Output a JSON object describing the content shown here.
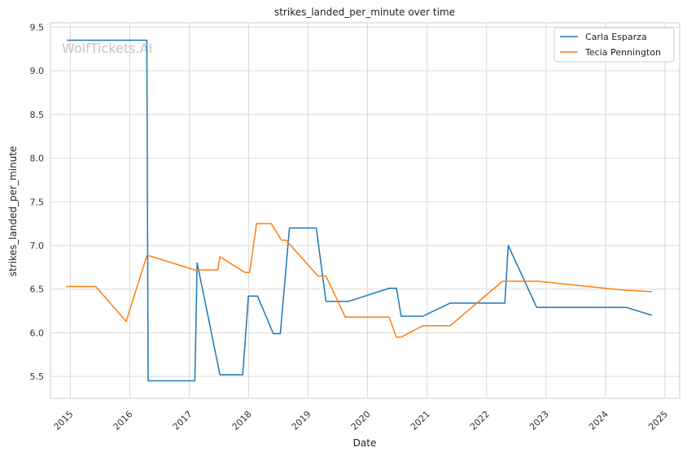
{
  "chart_data": {
    "type": "line",
    "title": "strikes_landed_per_minute over time",
    "xlabel": "Date",
    "ylabel": "strikes_landed_per_minute",
    "watermark": "WolfTickets.AI",
    "grid": true,
    "legend_position": "top-right",
    "xlim": [
      "2014-09-01",
      "2025-04-01"
    ],
    "ylim": [
      5.25,
      9.55
    ],
    "x_ticks": [
      "2015",
      "2016",
      "2017",
      "2018",
      "2019",
      "2020",
      "2021",
      "2022",
      "2023",
      "2024",
      "2025"
    ],
    "y_ticks": [
      "5.5",
      "6.0",
      "6.5",
      "7.0",
      "7.5",
      "8.0",
      "8.5",
      "9.0",
      "9.5"
    ],
    "series": [
      {
        "name": "Carla Esparza",
        "color": "#1f77b4",
        "points": [
          [
            "2014-12-12",
            9.35
          ],
          [
            "2016-04-15",
            9.35
          ],
          [
            "2016-04-23",
            5.45
          ],
          [
            "2017-02-04",
            5.45
          ],
          [
            "2017-02-18",
            6.8
          ],
          [
            "2017-07-08",
            5.52
          ],
          [
            "2017-11-25",
            5.52
          ],
          [
            "2017-12-30",
            6.42
          ],
          [
            "2018-02-24",
            6.42
          ],
          [
            "2018-06-01",
            5.99
          ],
          [
            "2018-07-14",
            5.99
          ],
          [
            "2018-09-08",
            7.2
          ],
          [
            "2019-02-20",
            7.2
          ],
          [
            "2019-04-20",
            6.36
          ],
          [
            "2019-09-07",
            6.36
          ],
          [
            "2020-05-13",
            6.51
          ],
          [
            "2020-06-27",
            6.51
          ],
          [
            "2020-07-25",
            6.19
          ],
          [
            "2020-12-05",
            6.19
          ],
          [
            "2021-05-22",
            6.34
          ],
          [
            "2022-04-23",
            6.34
          ],
          [
            "2022-05-14",
            7.0
          ],
          [
            "2022-11-05",
            6.29
          ],
          [
            "2024-05-11",
            6.29
          ],
          [
            "2024-10-12",
            6.2
          ]
        ]
      },
      {
        "name": "Tecia Pennington",
        "color": "#ff7f0e",
        "points": [
          [
            "2014-12-06",
            6.53
          ],
          [
            "2015-06-06",
            6.53
          ],
          [
            "2015-12-10",
            6.13
          ],
          [
            "2016-04-16",
            6.89
          ],
          [
            "2017-02-04",
            6.72
          ],
          [
            "2017-06-25",
            6.72
          ],
          [
            "2017-07-08",
            6.87
          ],
          [
            "2017-12-09",
            6.69
          ],
          [
            "2018-01-06",
            6.69
          ],
          [
            "2018-02-18",
            7.25
          ],
          [
            "2018-05-19",
            7.25
          ],
          [
            "2018-07-21",
            7.06
          ],
          [
            "2018-08-18",
            7.06
          ],
          [
            "2019-03-02",
            6.65
          ],
          [
            "2019-04-20",
            6.65
          ],
          [
            "2019-08-17",
            6.18
          ],
          [
            "2020-05-13",
            6.18
          ],
          [
            "2020-06-25",
            5.95
          ],
          [
            "2020-07-25",
            5.95
          ],
          [
            "2020-12-05",
            6.08
          ],
          [
            "2021-05-22",
            6.08
          ],
          [
            "2022-04-09",
            6.59
          ],
          [
            "2022-11-12",
            6.59
          ],
          [
            "2024-04-13",
            6.49
          ],
          [
            "2024-10-12",
            6.47
          ]
        ]
      }
    ]
  }
}
